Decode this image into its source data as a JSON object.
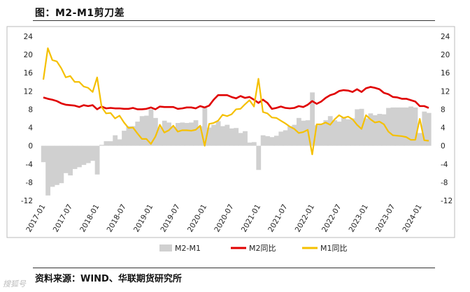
{
  "header": {
    "title": "图：M2-M1剪刀差"
  },
  "footer": {
    "source": "资料来源：WIND、华联期货研究所",
    "watermark": "搜狐号"
  },
  "chart_data": {
    "type": "line",
    "ylim": [
      -12,
      24
    ],
    "yticks": [
      -12,
      -8,
      -4,
      0,
      4,
      8,
      12,
      16,
      20,
      24
    ],
    "x_range": [
      "2017-01",
      "2024-03"
    ],
    "x_tick_labels": [
      "2017-01",
      "2017-07",
      "2018-01",
      "2018-07",
      "2019-01",
      "2019-07",
      "2020-01",
      "2020-07",
      "2021-01",
      "2021-07",
      "2022-01",
      "2022-07",
      "2023-01",
      "2023-07",
      "2024-01"
    ],
    "legend_position": "bottom",
    "series": [
      {
        "name": "M2-M1",
        "kind": "area",
        "color": "#d0d0d0",
        "points": [
          [
            "2017-01",
            -3.6
          ],
          [
            "2017-02",
            -10.9
          ],
          [
            "2017-03",
            -9.0
          ],
          [
            "2017-04",
            -8.6
          ],
          [
            "2017-05",
            -8.2
          ],
          [
            "2017-06",
            -6.0
          ],
          [
            "2017-07",
            -6.5
          ],
          [
            "2017-08",
            -5.1
          ],
          [
            "2017-09",
            -4.7
          ],
          [
            "2017-10",
            -4.2
          ],
          [
            "2017-11",
            -3.8
          ],
          [
            "2017-12",
            -3.3
          ],
          [
            "2018-01",
            -6.3
          ],
          [
            "2018-02",
            0.2
          ],
          [
            "2018-03",
            1.0
          ],
          [
            "2018-04",
            1.0
          ],
          [
            "2018-05",
            2.3
          ],
          [
            "2018-06",
            1.4
          ],
          [
            "2018-07",
            3.3
          ],
          [
            "2018-08",
            4.3
          ],
          [
            "2018-09",
            4.3
          ],
          [
            "2018-10",
            5.3
          ],
          [
            "2018-11",
            6.5
          ],
          [
            "2018-12",
            6.6
          ],
          [
            "2019-01",
            8.0
          ],
          [
            "2019-02",
            6.1
          ],
          [
            "2019-03",
            4.0
          ],
          [
            "2019-04",
            5.5
          ],
          [
            "2019-05",
            5.1
          ],
          [
            "2019-06",
            4.1
          ],
          [
            "2019-07",
            5.0
          ],
          [
            "2019-08",
            5.1
          ],
          [
            "2019-09",
            5.0
          ],
          [
            "2019-10",
            5.1
          ],
          [
            "2019-11",
            5.6
          ],
          [
            "2019-12",
            4.3
          ],
          [
            "2020-01",
            8.4
          ],
          [
            "2020-02",
            4.0
          ],
          [
            "2020-03",
            4.6
          ],
          [
            "2020-04",
            5.4
          ],
          [
            "2020-05",
            4.3
          ],
          [
            "2020-06",
            4.6
          ],
          [
            "2020-07",
            3.8
          ],
          [
            "2020-08",
            3.9
          ],
          [
            "2020-09",
            2.8
          ],
          [
            "2020-10",
            3.2
          ],
          [
            "2020-11",
            0.7
          ],
          [
            "2020-12",
            0.8
          ],
          [
            "2021-01",
            -5.3
          ],
          [
            "2021-02",
            2.3
          ],
          [
            "2021-03",
            2.1
          ],
          [
            "2021-04",
            1.9
          ],
          [
            "2021-05",
            2.2
          ],
          [
            "2021-06",
            3.1
          ],
          [
            "2021-07",
            3.4
          ],
          [
            "2021-08",
            4.3
          ],
          [
            "2021-09",
            4.6
          ],
          [
            "2021-10",
            6.1
          ],
          [
            "2021-11",
            5.5
          ],
          [
            "2021-12",
            5.6
          ],
          [
            "2022-01",
            11.7
          ],
          [
            "2022-02",
            4.5
          ],
          [
            "2022-03",
            4.7
          ],
          [
            "2022-04",
            5.6
          ],
          [
            "2022-05",
            6.5
          ],
          [
            "2022-06",
            5.6
          ],
          [
            "2022-07",
            5.3
          ],
          [
            "2022-08",
            6.2
          ],
          [
            "2022-09",
            5.8
          ],
          [
            "2022-10",
            6.0
          ],
          [
            "2022-11",
            8.0
          ],
          [
            "2022-12",
            8.1
          ],
          [
            "2023-01",
            6.0
          ],
          [
            "2023-02",
            7.1
          ],
          [
            "2023-03",
            6.7
          ],
          [
            "2023-04",
            7.0
          ],
          [
            "2023-05",
            6.9
          ],
          [
            "2023-06",
            8.3
          ],
          [
            "2023-07",
            8.4
          ],
          [
            "2023-08",
            8.4
          ],
          [
            "2023-09",
            8.4
          ],
          [
            "2023-10",
            8.4
          ],
          [
            "2023-11",
            8.6
          ],
          [
            "2023-12",
            8.4
          ],
          [
            "2024-01",
            2.8
          ],
          [
            "2024-02",
            7.5
          ],
          [
            "2024-03",
            7.2
          ]
        ]
      },
      {
        "name": "M2同比",
        "kind": "line",
        "color": "#e00000",
        "points": [
          [
            "2017-01",
            10.6
          ],
          [
            "2017-02",
            10.3
          ],
          [
            "2017-03",
            10.1
          ],
          [
            "2017-04",
            9.8
          ],
          [
            "2017-05",
            9.3
          ],
          [
            "2017-06",
            9.0
          ],
          [
            "2017-07",
            8.9
          ],
          [
            "2017-08",
            8.8
          ],
          [
            "2017-09",
            8.5
          ],
          [
            "2017-10",
            8.9
          ],
          [
            "2017-11",
            8.7
          ],
          [
            "2017-12",
            8.9
          ],
          [
            "2018-01",
            8.0
          ],
          [
            "2018-02",
            8.6
          ],
          [
            "2018-03",
            8.2
          ],
          [
            "2018-04",
            8.3
          ],
          [
            "2018-05",
            8.2
          ],
          [
            "2018-06",
            8.2
          ],
          [
            "2018-07",
            8.1
          ],
          [
            "2018-08",
            8.1
          ],
          [
            "2018-09",
            8.3
          ],
          [
            "2018-10",
            8.0
          ],
          [
            "2018-11",
            8.0
          ],
          [
            "2018-12",
            8.1
          ],
          [
            "2019-01",
            8.4
          ],
          [
            "2019-02",
            8.0
          ],
          [
            "2019-03",
            8.6
          ],
          [
            "2019-04",
            8.5
          ],
          [
            "2019-05",
            8.5
          ],
          [
            "2019-06",
            8.5
          ],
          [
            "2019-07",
            8.1
          ],
          [
            "2019-08",
            8.2
          ],
          [
            "2019-09",
            8.4
          ],
          [
            "2019-10",
            8.4
          ],
          [
            "2019-11",
            8.2
          ],
          [
            "2019-12",
            8.7
          ],
          [
            "2020-01",
            8.4
          ],
          [
            "2020-02",
            8.8
          ],
          [
            "2020-03",
            10.1
          ],
          [
            "2020-04",
            11.1
          ],
          [
            "2020-05",
            11.1
          ],
          [
            "2020-06",
            11.1
          ],
          [
            "2020-07",
            10.7
          ],
          [
            "2020-08",
            10.4
          ],
          [
            "2020-09",
            10.9
          ],
          [
            "2020-10",
            10.5
          ],
          [
            "2020-11",
            10.7
          ],
          [
            "2020-12",
            10.1
          ],
          [
            "2021-01",
            9.4
          ],
          [
            "2021-02",
            10.1
          ],
          [
            "2021-03",
            9.4
          ],
          [
            "2021-04",
            8.1
          ],
          [
            "2021-05",
            8.3
          ],
          [
            "2021-06",
            8.6
          ],
          [
            "2021-07",
            8.3
          ],
          [
            "2021-08",
            8.2
          ],
          [
            "2021-09",
            8.3
          ],
          [
            "2021-10",
            8.7
          ],
          [
            "2021-11",
            8.5
          ],
          [
            "2021-12",
            9.0
          ],
          [
            "2022-01",
            9.8
          ],
          [
            "2022-02",
            9.2
          ],
          [
            "2022-03",
            9.7
          ],
          [
            "2022-04",
            10.5
          ],
          [
            "2022-05",
            11.1
          ],
          [
            "2022-06",
            11.4
          ],
          [
            "2022-07",
            12.0
          ],
          [
            "2022-08",
            12.2
          ],
          [
            "2022-09",
            12.1
          ],
          [
            "2022-10",
            11.8
          ],
          [
            "2022-11",
            12.4
          ],
          [
            "2022-12",
            11.8
          ],
          [
            "2023-01",
            12.6
          ],
          [
            "2023-02",
            12.9
          ],
          [
            "2023-03",
            12.7
          ],
          [
            "2023-04",
            12.4
          ],
          [
            "2023-05",
            11.6
          ],
          [
            "2023-06",
            11.3
          ],
          [
            "2023-07",
            10.7
          ],
          [
            "2023-08",
            10.6
          ],
          [
            "2023-09",
            10.3
          ],
          [
            "2023-10",
            10.3
          ],
          [
            "2023-11",
            10.0
          ],
          [
            "2023-12",
            9.7
          ],
          [
            "2024-01",
            8.7
          ],
          [
            "2024-02",
            8.7
          ],
          [
            "2024-03",
            8.3
          ]
        ]
      },
      {
        "name": "M1同比",
        "kind": "line",
        "color": "#f5c000",
        "points": [
          [
            "2017-01",
            14.5
          ],
          [
            "2017-02",
            21.4
          ],
          [
            "2017-03",
            18.8
          ],
          [
            "2017-04",
            18.5
          ],
          [
            "2017-05",
            17.0
          ],
          [
            "2017-06",
            15.0
          ],
          [
            "2017-07",
            15.3
          ],
          [
            "2017-08",
            14.0
          ],
          [
            "2017-09",
            14.0
          ],
          [
            "2017-10",
            13.0
          ],
          [
            "2017-11",
            12.7
          ],
          [
            "2017-12",
            11.8
          ],
          [
            "2018-01",
            15.0
          ],
          [
            "2018-02",
            8.5
          ],
          [
            "2018-03",
            7.1
          ],
          [
            "2018-04",
            7.2
          ],
          [
            "2018-05",
            6.0
          ],
          [
            "2018-06",
            6.6
          ],
          [
            "2018-07",
            5.1
          ],
          [
            "2018-08",
            3.9
          ],
          [
            "2018-09",
            4.0
          ],
          [
            "2018-10",
            2.7
          ],
          [
            "2018-11",
            1.5
          ],
          [
            "2018-12",
            1.5
          ],
          [
            "2019-01",
            0.4
          ],
          [
            "2019-02",
            2.0
          ],
          [
            "2019-03",
            4.6
          ],
          [
            "2019-04",
            2.9
          ],
          [
            "2019-05",
            3.4
          ],
          [
            "2019-06",
            4.4
          ],
          [
            "2019-07",
            3.1
          ],
          [
            "2019-08",
            3.4
          ],
          [
            "2019-09",
            3.4
          ],
          [
            "2019-10",
            3.3
          ],
          [
            "2019-11",
            3.5
          ],
          [
            "2019-12",
            4.4
          ],
          [
            "2020-01",
            0.0
          ],
          [
            "2020-02",
            4.8
          ],
          [
            "2020-03",
            5.0
          ],
          [
            "2020-04",
            5.5
          ],
          [
            "2020-05",
            6.8
          ],
          [
            "2020-06",
            6.5
          ],
          [
            "2020-07",
            6.9
          ],
          [
            "2020-08",
            8.0
          ],
          [
            "2020-09",
            8.1
          ],
          [
            "2020-10",
            9.1
          ],
          [
            "2020-11",
            10.0
          ],
          [
            "2020-12",
            8.6
          ],
          [
            "2021-01",
            14.7
          ],
          [
            "2021-02",
            7.4
          ],
          [
            "2021-03",
            7.1
          ],
          [
            "2021-04",
            6.2
          ],
          [
            "2021-05",
            6.1
          ],
          [
            "2021-06",
            5.5
          ],
          [
            "2021-07",
            4.9
          ],
          [
            "2021-08",
            4.2
          ],
          [
            "2021-09",
            3.7
          ],
          [
            "2021-10",
            2.8
          ],
          [
            "2021-11",
            3.0
          ],
          [
            "2021-12",
            3.5
          ],
          [
            "2022-01",
            -1.9
          ],
          [
            "2022-02",
            4.7
          ],
          [
            "2022-03",
            4.7
          ],
          [
            "2022-04",
            5.1
          ],
          [
            "2022-05",
            4.6
          ],
          [
            "2022-06",
            5.8
          ],
          [
            "2022-07",
            6.7
          ],
          [
            "2022-08",
            6.1
          ],
          [
            "2022-09",
            6.4
          ],
          [
            "2022-10",
            5.8
          ],
          [
            "2022-11",
            4.6
          ],
          [
            "2022-12",
            3.7
          ],
          [
            "2023-01",
            6.7
          ],
          [
            "2023-02",
            5.8
          ],
          [
            "2023-03",
            5.1
          ],
          [
            "2023-04",
            5.3
          ],
          [
            "2023-05",
            4.7
          ],
          [
            "2023-06",
            3.1
          ],
          [
            "2023-07",
            2.3
          ],
          [
            "2023-08",
            2.2
          ],
          [
            "2023-09",
            2.1
          ],
          [
            "2023-10",
            1.9
          ],
          [
            "2023-11",
            1.3
          ],
          [
            "2023-12",
            1.3
          ],
          [
            "2024-01",
            5.9
          ],
          [
            "2024-02",
            1.2
          ],
          [
            "2024-03",
            1.1
          ]
        ]
      }
    ]
  }
}
